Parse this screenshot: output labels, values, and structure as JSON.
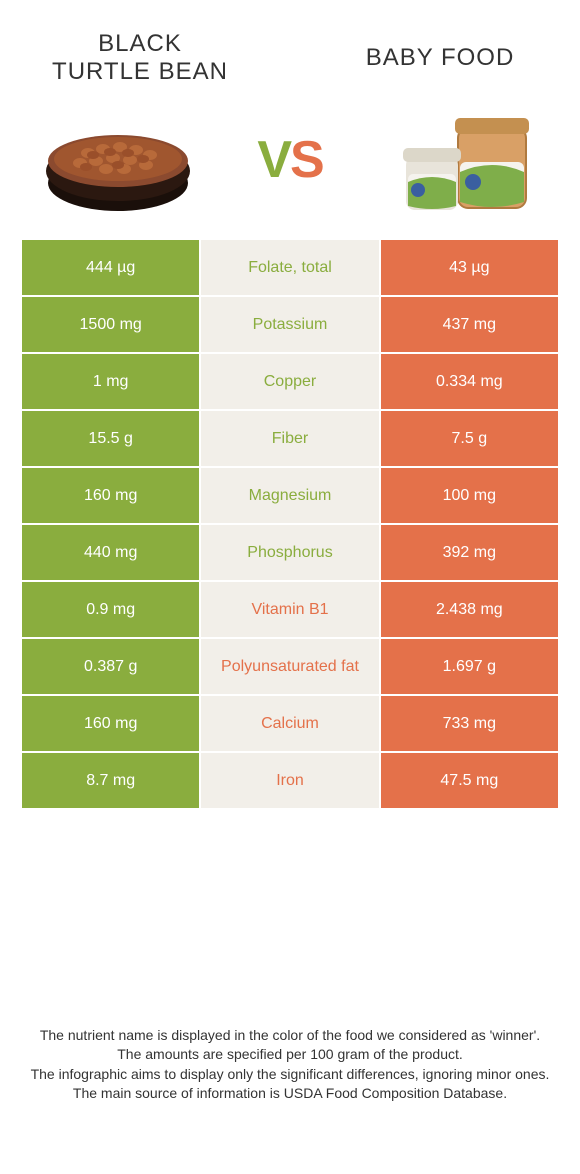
{
  "left_food": {
    "title_line1": "Black",
    "title_line2": "turtle bean"
  },
  "right_food": {
    "title_line1": "Baby food"
  },
  "vs": {
    "v": "V",
    "s": "S"
  },
  "colors": {
    "left": "#8aad3e",
    "right": "#e4714a",
    "mid_bg": "#f2efe9",
    "cell_text": "#ffffff"
  },
  "rows": [
    {
      "left": "444 µg",
      "label": "Folate, total",
      "right": "43 µg",
      "winner": "left"
    },
    {
      "left": "1500 mg",
      "label": "Potassium",
      "right": "437 mg",
      "winner": "left"
    },
    {
      "left": "1 mg",
      "label": "Copper",
      "right": "0.334 mg",
      "winner": "left"
    },
    {
      "left": "15.5 g",
      "label": "Fiber",
      "right": "7.5 g",
      "winner": "left"
    },
    {
      "left": "160 mg",
      "label": "Magnesium",
      "right": "100 mg",
      "winner": "left"
    },
    {
      "left": "440 mg",
      "label": "Phosphorus",
      "right": "392 mg",
      "winner": "left"
    },
    {
      "left": "0.9 mg",
      "label": "Vitamin B1",
      "right": "2.438 mg",
      "winner": "right"
    },
    {
      "left": "0.387 g",
      "label": "Polyunsaturated fat",
      "right": "1.697 g",
      "winner": "right"
    },
    {
      "left": "160 mg",
      "label": "Calcium",
      "right": "733 mg",
      "winner": "right"
    },
    {
      "left": "8.7 mg",
      "label": "Iron",
      "right": "47.5 mg",
      "winner": "right"
    }
  ],
  "footer": {
    "l1": "The nutrient name is displayed in the color of the food we considered as 'winner'.",
    "l2": "The amounts are specified per 100 gram of the product.",
    "l3": "The infographic aims to display only the significant differences, ignoring minor ones.",
    "l4": "The main source of information is USDA Food Composition Database."
  }
}
